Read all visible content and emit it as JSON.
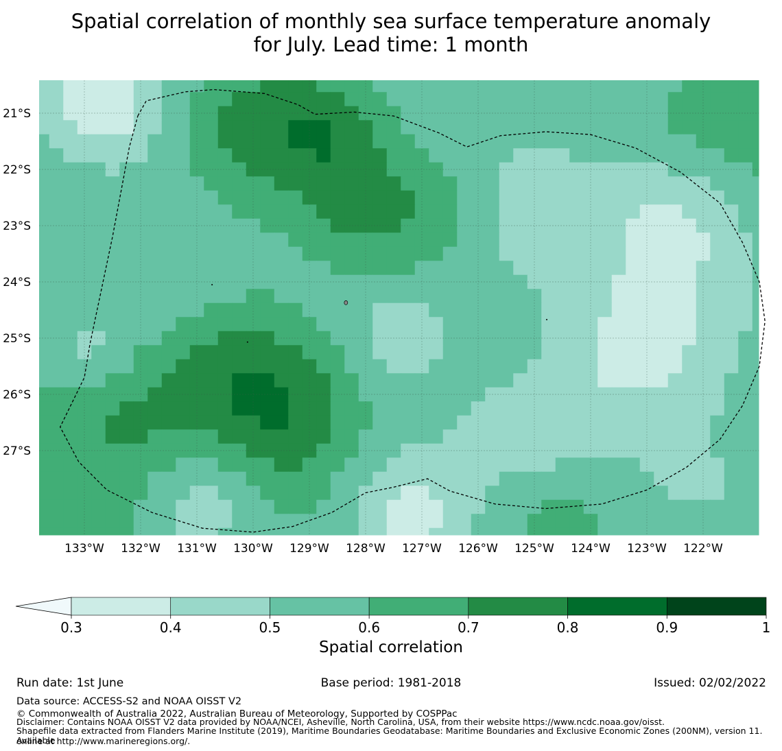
{
  "title": {
    "line1": "Spatial correlation of monthly sea surface temperature anomaly",
    "line2": "for July. Lead time: 1 month"
  },
  "map": {
    "lat_labels": [
      "21°S",
      "22°S",
      "23°S",
      "24°S",
      "25°S",
      "26°S",
      "27°S"
    ],
    "lon_labels": [
      "133°W",
      "132°W",
      "131°W",
      "130°W",
      "129°W",
      "128°W",
      "127°W",
      "126°W",
      "125°W",
      "124°W",
      "123°W",
      "122°W"
    ],
    "lon_range": [
      -133.8,
      -121.0
    ],
    "lat_range": [
      -28.5,
      -20.4
    ],
    "grid": true,
    "grid_resolution_deg": 0.25,
    "correlation_grid_note": "values approximated as smooth field binned into colorbar levels"
  },
  "colorbar": {
    "label": "Spatial correlation",
    "ticks": [
      "0.3",
      "0.4",
      "0.5",
      "0.6",
      "0.7",
      "0.8",
      "0.9",
      "1"
    ],
    "levels": [
      0.3,
      0.4,
      0.5,
      0.6,
      0.7,
      0.8,
      0.9,
      1.0
    ],
    "colors": [
      "#ccece6",
      "#99d8c9",
      "#66c2a4",
      "#41ae76",
      "#238b45",
      "#006d2c",
      "#00441b"
    ],
    "under_color": "#f0f9fb",
    "extend": "min"
  },
  "footer": {
    "run_date": "Run date: 1st June",
    "base_period": "Base period: 1981-2018",
    "issued": "Issued: 02/02/2022",
    "data_source": "Data source: ACCESS-S2 and NOAA OISST V2",
    "copyright": "© Commonwealth of Australia 2022, Australian Bureau of Meteorology, Supported by COSPPac",
    "disclaimer": "Disclaimer: Contains NOAA OISST V2 data provided by NOAA/NCEI, Asheville, North Carolina, USA, from their website https://www.ncdc.noaa.gov/oisst.",
    "shapefile_line1": "Shapefile data extracted from Flanders Marine Institute (2019), Maritime Boundaries Geodatabase: Maritime Boundaries and Exclusive Economic Zones (200NM), version 11. Available",
    "shapefile_line2": "online at http://www.marineregions.org/."
  }
}
